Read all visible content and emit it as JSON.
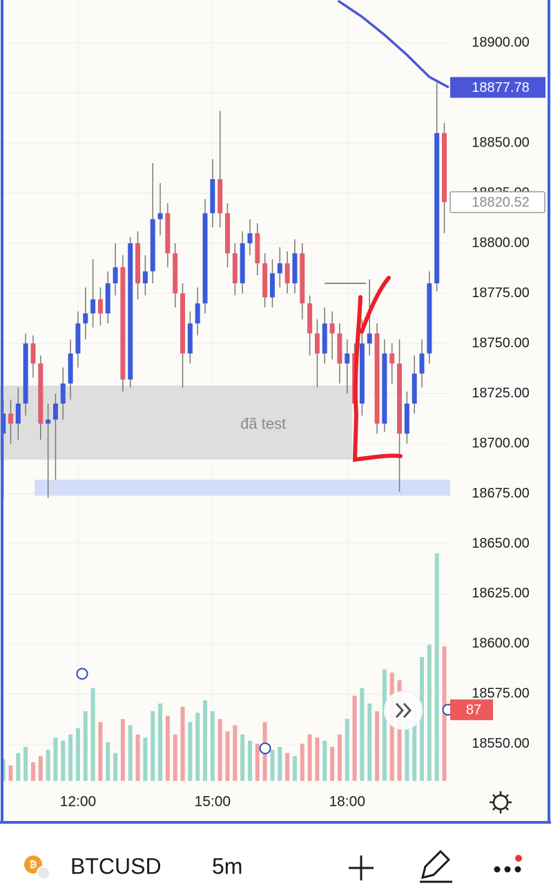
{
  "chart_data": {
    "type": "candlestick",
    "ylim": [
      18531.7,
      18921.4
    ],
    "xlim": [
      -0.43,
      59.6
    ],
    "yticks": [
      {
        "value": 18900,
        "label": "18900.00"
      },
      {
        "value": 18875,
        "label": "18875.00"
      },
      {
        "value": 18850,
        "label": "18850.00"
      },
      {
        "value": 18825,
        "label": "18825.00"
      },
      {
        "value": 18800,
        "label": "18800.00"
      },
      {
        "value": 18775,
        "label": "18775.00"
      },
      {
        "value": 18750,
        "label": "18750.00"
      },
      {
        "value": 18725,
        "label": "18725.00"
      },
      {
        "value": 18700,
        "label": "18700.00"
      },
      {
        "value": 18675,
        "label": "18675.00"
      },
      {
        "value": 18650,
        "label": "18650.00"
      },
      {
        "value": 18625,
        "label": "18625.00"
      },
      {
        "value": 18600,
        "label": "18600.00"
      },
      {
        "value": 18575,
        "label": "18575.00"
      },
      {
        "value": 18550,
        "label": "18550.00"
      }
    ],
    "xticks": [
      {
        "value": 10,
        "label": "12:00"
      },
      {
        "value": 28,
        "label": "15:00"
      },
      {
        "value": 46,
        "label": "18:00"
      }
    ],
    "up_color": "#3b5bdb",
    "down_color": "#e35d6a",
    "open": [
      18705,
      18715,
      18710,
      18720,
      18750,
      18740,
      18710,
      18712,
      18720,
      18730,
      18745,
      18760,
      18765,
      18772,
      18765,
      18780,
      18788,
      18732,
      18800,
      18780,
      18786,
      18812,
      18815,
      18795,
      18775,
      18745,
      18760,
      18770,
      18815,
      18832,
      18815,
      18795,
      18780,
      18800,
      18805,
      18790,
      18773,
      18785,
      18790,
      18780,
      18795,
      18770,
      18755,
      18745,
      18760,
      18755,
      18740,
      18745,
      18720,
      18750,
      18755,
      18710,
      18745,
      18740,
      18705,
      18720,
      18735,
      18745,
      18780,
      18855
    ],
    "high": [
      18722,
      18722,
      18728,
      18755,
      18754,
      18744,
      18720,
      18725,
      18738,
      18752,
      18766,
      18778,
      18792,
      18778,
      18786,
      18800,
      18794,
      18803,
      18806,
      18794,
      18840,
      18830,
      18820,
      18800,
      18780,
      18766,
      18778,
      18822,
      18842,
      18866,
      18820,
      18800,
      18806,
      18812,
      18810,
      18795,
      18792,
      18798,
      18796,
      18802,
      18800,
      18774,
      18762,
      18768,
      18766,
      18760,
      18752,
      18750,
      18762,
      18782,
      18760,
      18752,
      18750,
      18752,
      18726,
      18744,
      18752,
      18786,
      18880,
      18860
    ],
    "low": [
      18673,
      18700,
      18702,
      18714,
      18733,
      18702,
      18673,
      18682,
      18712,
      18722,
      18738,
      18752,
      18758,
      18759,
      18760,
      18774,
      18726,
      18728,
      18772,
      18774,
      18780,
      18804,
      18788,
      18768,
      18728,
      18740,
      18754,
      18765,
      18808,
      18808,
      18788,
      18774,
      18775,
      18794,
      18784,
      18768,
      18768,
      18778,
      18775,
      18775,
      18762,
      18744,
      18728,
      18740,
      18742,
      18730,
      18725,
      18693,
      18714,
      18744,
      18705,
      18706,
      18730,
      18676,
      18700,
      18715,
      18728,
      18740,
      18776,
      18805
    ],
    "close": [
      18715,
      18710,
      18720,
      18750,
      18740,
      18710,
      18712,
      18720,
      18730,
      18745,
      18760,
      18765,
      18772,
      18765,
      18780,
      18788,
      18732,
      18800,
      18780,
      18786,
      18812,
      18815,
      18795,
      18775,
      18745,
      18760,
      18770,
      18815,
      18832,
      18815,
      18795,
      18780,
      18800,
      18805,
      18790,
      18773,
      18785,
      18790,
      18780,
      18795,
      18770,
      18755,
      18745,
      18760,
      18755,
      18740,
      18745,
      18720,
      18750,
      18755,
      18710,
      18745,
      18740,
      18705,
      18720,
      18735,
      18745,
      18780,
      18855,
      18820.52
    ],
    "volume": [
      14,
      10,
      18,
      22,
      12,
      16,
      20,
      28,
      26,
      30,
      34,
      45,
      60,
      38,
      25,
      18,
      40,
      36,
      30,
      28,
      45,
      50,
      42,
      30,
      48,
      38,
      44,
      52,
      45,
      40,
      32,
      36,
      30,
      26,
      24,
      38,
      20,
      22,
      18,
      16,
      24,
      30,
      28,
      26,
      22,
      30,
      40,
      55,
      60,
      50,
      45,
      72,
      70,
      65,
      40,
      50,
      80,
      88,
      147,
      87
    ],
    "volume_up_color": "#9bd8cb",
    "volume_down_color": "#f1a3a3",
    "ma": {
      "color": "#4a55d8",
      "x": [
        44.8,
        48,
        51,
        54,
        57,
        59.6
      ],
      "values": [
        18921,
        18913,
        18904,
        18894,
        18883,
        18877.78
      ]
    },
    "zones": [
      {
        "ylim": [
          18692,
          18729
        ],
        "xlim": [
          -0.43,
          46.7
        ],
        "color": "#dedede",
        "label": "đã test"
      },
      {
        "ylim": [
          18674,
          18682
        ],
        "xlim": [
          4.2,
          59.8
        ],
        "color": "#d4ddf8"
      }
    ],
    "level": {
      "value": 18780,
      "xlim": [
        43,
        48.5
      ]
    }
  },
  "toolbar": {
    "symbol": "BTCUSD",
    "interval": "5m"
  }
}
